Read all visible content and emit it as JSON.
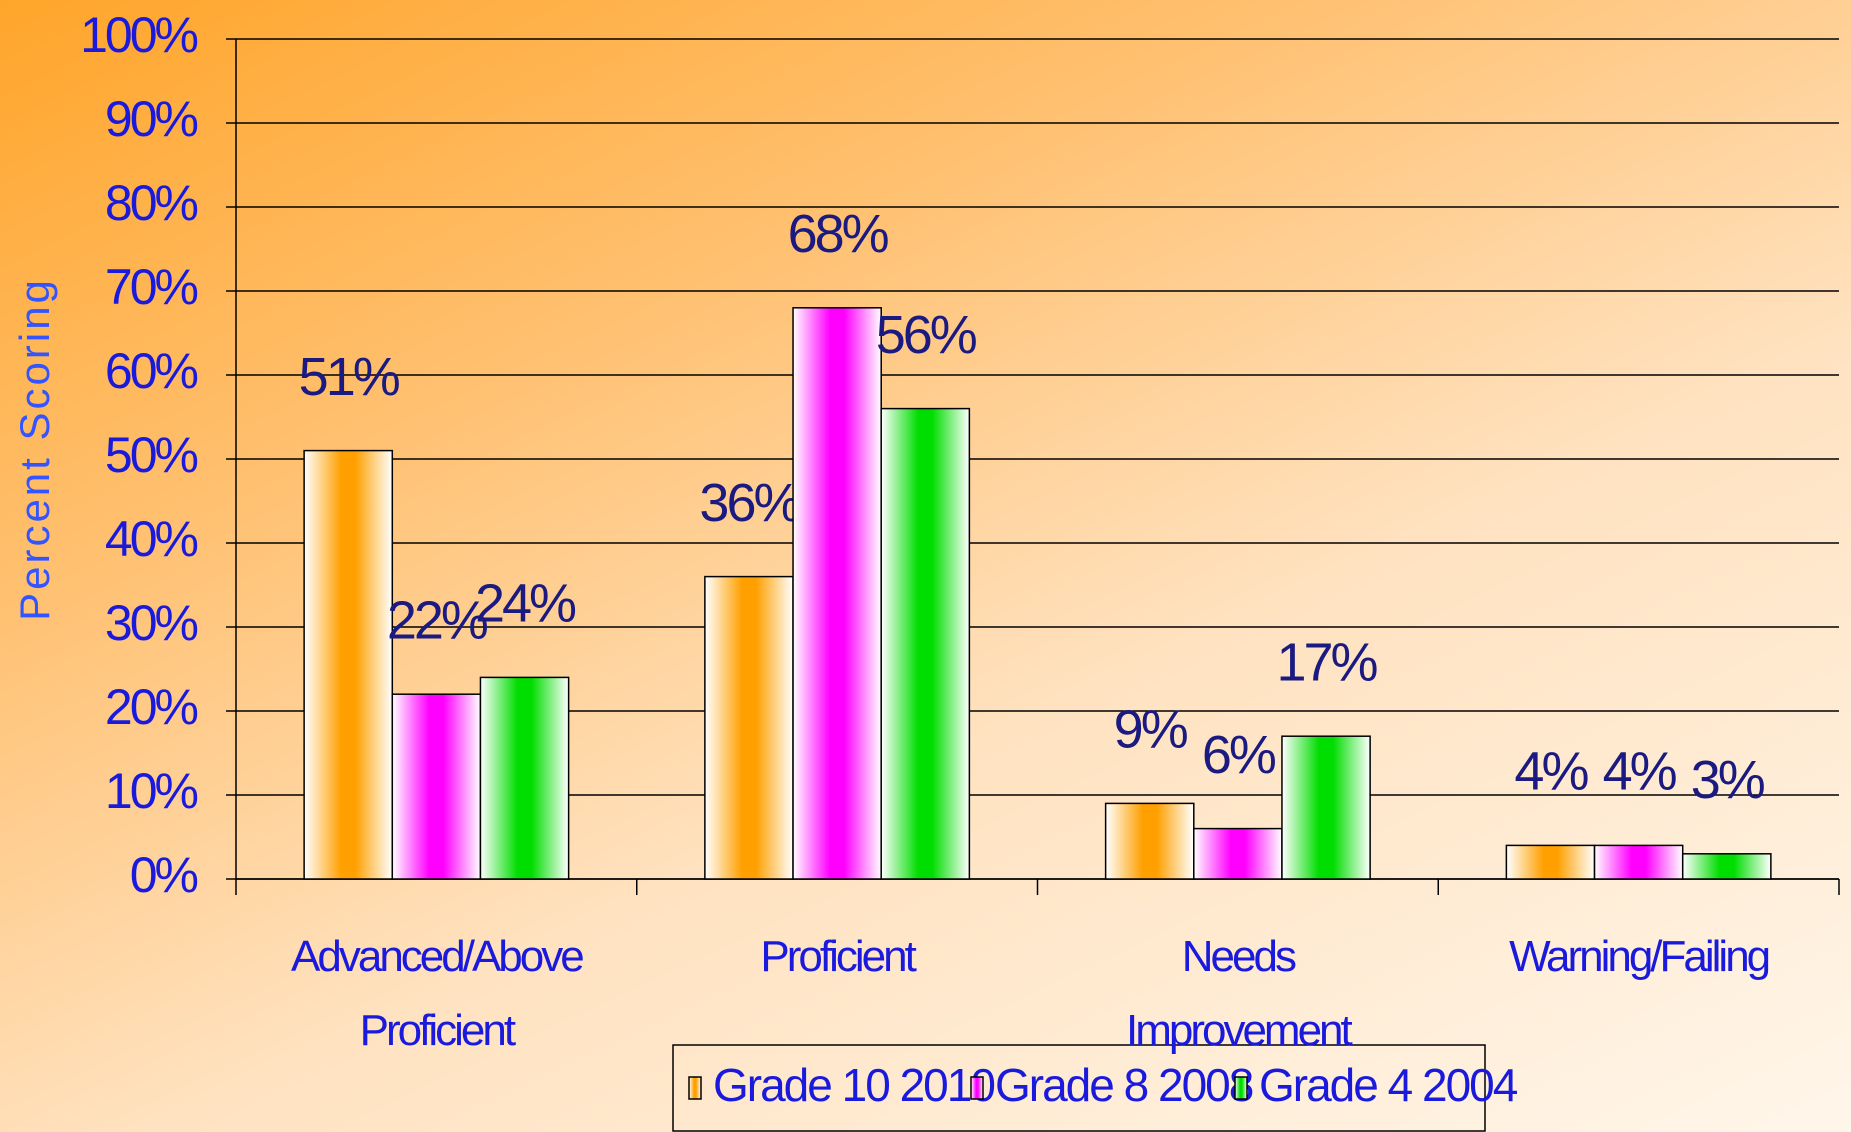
{
  "chart_data": {
    "type": "bar",
    "y_axis_label": "Percent Scoring",
    "categories": [
      "Advanced/Above Proficient",
      "Proficient",
      "Needs Improvement",
      "Warning/Failing"
    ],
    "series": [
      {
        "name": "Grade 10 2010",
        "color": "#ffa000",
        "values": [
          51,
          36,
          9,
          4
        ],
        "value_labels": [
          "51%",
          "36%",
          "9%",
          "4%"
        ]
      },
      {
        "name": "Grade 8 2008",
        "color": "#ff00ff",
        "values": [
          22,
          68,
          6,
          4
        ],
        "value_labels": [
          "22%",
          "68%",
          "6%",
          "4%"
        ]
      },
      {
        "name": "Grade 4 2004",
        "color": "#00dd00",
        "values": [
          24,
          56,
          17,
          3
        ],
        "value_labels": [
          "24%",
          "56%",
          "17%",
          "3%"
        ]
      }
    ],
    "ylim": [
      0,
      100
    ],
    "yticks": [
      {
        "value": 0,
        "label": "0%"
      },
      {
        "value": 10,
        "label": "10%"
      },
      {
        "value": 20,
        "label": "20%"
      },
      {
        "value": 30,
        "label": "30%"
      },
      {
        "value": 40,
        "label": "40%"
      },
      {
        "value": 50,
        "label": "50%"
      },
      {
        "value": 60,
        "label": "60%"
      },
      {
        "value": 70,
        "label": "70%"
      },
      {
        "value": 80,
        "label": "80%"
      },
      {
        "value": 90,
        "label": "90%"
      },
      {
        "value": 100,
        "label": "100%"
      }
    ],
    "grid": true,
    "legend": "bottom"
  }
}
